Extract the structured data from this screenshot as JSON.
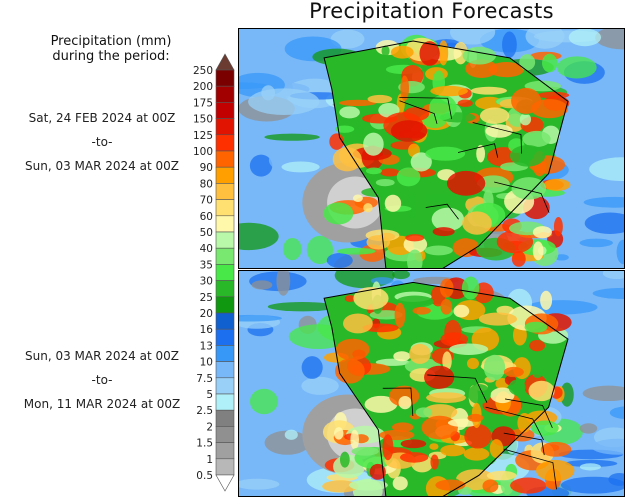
{
  "chart_data": {
    "type": "heatmap",
    "title": "Precipitation Forecasts",
    "colorbar": {
      "label": "Precipitation (mm) during the period:",
      "ticks": [
        "250",
        "200",
        "175",
        "150",
        "125",
        "100",
        "90",
        "80",
        "70",
        "60",
        "50",
        "40",
        "35",
        "30",
        "25",
        "20",
        "16",
        "13",
        "10",
        "7.5",
        "5",
        "2.5",
        "2",
        "1.5",
        "1",
        "0.5"
      ],
      "colors": [
        "#7a0000",
        "#a20000",
        "#c20000",
        "#e01400",
        "#ff3000",
        "#ff6400",
        "#ffa000",
        "#ffc040",
        "#ffe070",
        "#fff8aa",
        "#b8f8a8",
        "#78e870",
        "#48e848",
        "#28b828",
        "#109810",
        "#1060d0",
        "#1c70f0",
        "#3898f8",
        "#78b8f8",
        "#98d0f8",
        "#b0f0f8",
        "#808080",
        "#909090",
        "#a0a0a0",
        "#b8b8b8"
      ],
      "over_color": "#6b3a30",
      "under_color": "#ffffff"
    },
    "panels": [
      {
        "start": "Sat, 24 FEB 2024 at 00Z",
        "sep": "-to-",
        "end": "Sun, 03 MAR 2024 at 00Z"
      },
      {
        "start": "Sun, 03 MAR 2024 at 00Z",
        "sep": "-to-",
        "end": "Mon, 11 MAR 2024 at 00Z"
      }
    ]
  },
  "legend_title_line1": "Precipitation (mm)",
  "legend_title_line2": "during the period:"
}
